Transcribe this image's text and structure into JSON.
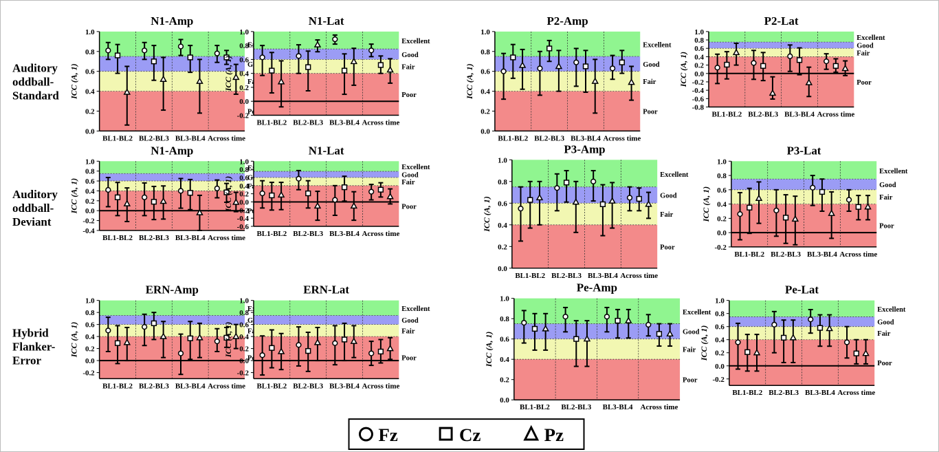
{
  "figure": {
    "row_labels": [
      [
        "Auditory",
        "oddball-",
        "Standard"
      ],
      [
        "Auditory",
        "oddball-",
        "Deviant"
      ],
      [
        "Hybrid",
        "Flanker-",
        "Error"
      ]
    ],
    "legend": [
      {
        "marker": "circle",
        "label": "Fz"
      },
      {
        "marker": "square",
        "label": "Cz"
      },
      {
        "marker": "triangle",
        "label": "Pz"
      }
    ]
  },
  "colors": {
    "excellent": "#90f590",
    "good": "#9b9cf5",
    "fair": "#f2f7b2",
    "poor": "#f38a8a"
  },
  "chart_data": [
    {
      "type": "scatter",
      "title": "N1-Amp",
      "ylabel": "ICC (A, 1)",
      "ylim": [
        0,
        1
      ],
      "yticks": [
        "0.0",
        "0.2",
        "0.4",
        "0.6",
        "0.8",
        "1.0"
      ],
      "categories": [
        "BL1-BL2",
        "BL2-BL3",
        "BL3-BL4",
        "Across time"
      ],
      "bands": [
        "Excellent",
        "Good",
        "Fair",
        "Poor"
      ],
      "series": [
        {
          "name": "Fz",
          "values": [
            0.81,
            0.81,
            0.85,
            0.78
          ],
          "ci_low": [
            0.72,
            0.72,
            0.76,
            0.69
          ],
          "ci_high": [
            0.89,
            0.89,
            0.92,
            0.86
          ]
        },
        {
          "name": "Cz",
          "values": [
            0.76,
            0.7,
            0.74,
            0.74
          ],
          "ci_low": [
            0.58,
            0.51,
            0.59,
            0.67
          ],
          "ci_high": [
            0.87,
            0.86,
            0.86,
            0.81
          ]
        },
        {
          "name": "Pz",
          "values": [
            0.39,
            0.52,
            0.5,
            0.54
          ],
          "ci_low": [
            0.06,
            0.21,
            0.18,
            0.37
          ],
          "ci_high": [
            0.65,
            0.74,
            0.72,
            0.67
          ]
        }
      ]
    },
    {
      "type": "scatter",
      "title": "N1-Lat",
      "ylabel": "ICC (A, 1)",
      "ylim": [
        -0.2,
        1
      ],
      "yticks": [
        "-0.2",
        "0.0",
        "0.2",
        "0.4",
        "0.6",
        "0.8",
        "1.0"
      ],
      "categories": [
        "BL1-BL2",
        "BL2-BL3",
        "BL3-BL4",
        "Across time"
      ],
      "bands": [
        "Excellent",
        "Good",
        "Fair",
        "Poor"
      ],
      "series": [
        {
          "name": "Fz",
          "values": [
            0.63,
            0.65,
            0.89,
            0.73
          ],
          "ci_low": [
            0.37,
            0.4,
            0.82,
            0.64
          ],
          "ci_high": [
            0.8,
            0.81,
            0.95,
            0.82
          ]
        },
        {
          "name": "Cz",
          "values": [
            0.44,
            0.49,
            0.44,
            0.52
          ],
          "ci_low": [
            0.12,
            0.15,
            0.1,
            0.4
          ],
          "ci_high": [
            0.7,
            0.72,
            0.68,
            0.65
          ]
        },
        {
          "name": "Pz",
          "values": [
            0.28,
            0.81,
            0.57,
            0.45
          ],
          "ci_low": [
            -0.08,
            0.71,
            0.23,
            0.26
          ],
          "ci_high": [
            0.58,
            0.88,
            0.76,
            0.61
          ]
        }
      ]
    },
    {
      "type": "scatter",
      "title": "P2-Amp",
      "ylabel": "ICC (A, 1)",
      "ylim": [
        0,
        1
      ],
      "yticks": [
        "0.0",
        "0.2",
        "0.4",
        "0.6",
        "0.8",
        "1.0"
      ],
      "categories": [
        "BL1-BL2",
        "BL2-BL3",
        "BL3-BL4",
        "Across time"
      ],
      "bands": [
        "Excellent",
        "Good",
        "Fair",
        "Poor"
      ],
      "series": [
        {
          "name": "Fz",
          "values": [
            0.6,
            0.63,
            0.69,
            0.63
          ],
          "ci_low": [
            0.32,
            0.36,
            0.45,
            0.52
          ],
          "ci_high": [
            0.78,
            0.8,
            0.83,
            0.76
          ]
        },
        {
          "name": "Cz",
          "values": [
            0.74,
            0.83,
            0.65,
            0.69
          ],
          "ci_low": [
            0.53,
            0.7,
            0.39,
            0.58
          ],
          "ci_high": [
            0.87,
            0.91,
            0.81,
            0.81
          ]
        },
        {
          "name": "Pz",
          "values": [
            0.66,
            0.65,
            0.5,
            0.49
          ],
          "ci_low": [
            0.42,
            0.4,
            0.18,
            0.31
          ],
          "ci_high": [
            0.82,
            0.81,
            0.72,
            0.65
          ]
        }
      ]
    },
    {
      "type": "scatter",
      "title": "P2-Lat",
      "ylabel": "ICC (A, 1)",
      "ylim": [
        -0.8,
        1
      ],
      "yticks": [
        "-0.8",
        "-0.6",
        "-0.4",
        "-0.2",
        "0.0",
        "0.2",
        "0.4",
        "0.6",
        "0.8",
        "1.0"
      ],
      "categories": [
        "BL1-BL2",
        "BL2-BL3",
        "BL3-BL4",
        "Across time"
      ],
      "bands": [
        "Excellent",
        "Good",
        "Fair",
        "Poor"
      ],
      "series": [
        {
          "name": "Fz",
          "values": [
            0.14,
            0.25,
            0.41,
            0.29
          ],
          "ci_low": [
            -0.24,
            -0.14,
            0.05,
            0.1
          ],
          "ci_high": [
            0.46,
            0.55,
            0.68,
            0.47
          ]
        },
        {
          "name": "Cz",
          "values": [
            0.21,
            0.18,
            0.32,
            0.18
          ],
          "ci_low": [
            -0.13,
            -0.17,
            -0.03,
            0.03
          ],
          "ci_high": [
            0.52,
            0.5,
            0.61,
            0.35
          ]
        },
        {
          "name": "Pz",
          "values": [
            0.5,
            -0.47,
            -0.22,
            0.12
          ],
          "ci_low": [
            0.2,
            -0.61,
            -0.55,
            -0.05
          ],
          "ci_high": [
            0.72,
            -0.08,
            0.15,
            0.3
          ]
        }
      ]
    },
    {
      "type": "scatter",
      "title": "N1-Amp",
      "ylabel": "ICC (A, 1)",
      "ylim": [
        -0.4,
        1
      ],
      "yticks": [
        "-0.4",
        "-0.2",
        "0.0",
        "0.2",
        "0.4",
        "0.6",
        "0.8",
        "1.0"
      ],
      "categories": [
        "BL1-BL2",
        "BL2-BL3",
        "BL3-BL4",
        "Across time"
      ],
      "bands": [
        "Excellent",
        "Good",
        "Fair",
        "Poor"
      ],
      "series": [
        {
          "name": "Fz",
          "values": [
            0.42,
            0.27,
            0.4,
            0.45
          ],
          "ci_low": [
            0.08,
            -0.1,
            0.05,
            0.26
          ],
          "ci_high": [
            0.67,
            0.56,
            0.65,
            0.62
          ]
        },
        {
          "name": "Cz",
          "values": [
            0.27,
            0.18,
            0.36,
            0.37
          ],
          "ci_low": [
            -0.1,
            -0.18,
            0.02,
            0.17
          ],
          "ci_high": [
            0.57,
            0.49,
            0.63,
            0.55
          ]
        },
        {
          "name": "Pz",
          "values": [
            0.14,
            0.19,
            -0.04,
            0.17
          ],
          "ci_low": [
            -0.22,
            -0.17,
            -0.4,
            -0.02
          ],
          "ci_high": [
            0.46,
            0.5,
            0.31,
            0.37
          ]
        }
      ]
    },
    {
      "type": "scatter",
      "title": "N1-Lat",
      "ylabel": "ICC (A, 1)",
      "ylim": [
        -0.6,
        1
      ],
      "yticks": [
        "-0.6",
        "-0.4",
        "-0.2",
        "0.0",
        "0.2",
        "0.4",
        "0.6",
        "0.8",
        "1.0"
      ],
      "categories": [
        "BL1-BL2",
        "BL2-BL3",
        "BL3-BL4",
        "Across time"
      ],
      "bands": [
        "Excellent",
        "Good",
        "Fair",
        "Poor"
      ],
      "series": [
        {
          "name": "Fz",
          "values": [
            0.21,
            0.57,
            0.05,
            0.25
          ],
          "ci_low": [
            -0.15,
            0.3,
            -0.33,
            0.05
          ],
          "ci_high": [
            0.52,
            0.77,
            0.4,
            0.43
          ]
        },
        {
          "name": "Cz",
          "values": [
            0.16,
            0.21,
            0.36,
            0.3
          ],
          "ci_low": [
            -0.2,
            -0.15,
            0.02,
            0.12
          ],
          "ci_high": [
            0.48,
            0.52,
            0.63,
            0.47
          ]
        },
        {
          "name": "Pz",
          "values": [
            0.17,
            -0.1,
            -0.1,
            0.13
          ],
          "ci_low": [
            -0.19,
            -0.45,
            -0.45,
            -0.05
          ],
          "ci_high": [
            0.48,
            0.26,
            0.25,
            0.32
          ]
        }
      ]
    },
    {
      "type": "scatter",
      "title": "P3-Amp",
      "ylabel": "ICC (A, 1)",
      "ylim": [
        0,
        1
      ],
      "yticks": [
        "0.0",
        "0.2",
        "0.4",
        "0.6",
        "0.8",
        "1.0"
      ],
      "categories": [
        "BL1-BL2",
        "BL2-BL3",
        "BL3-BL4",
        "Across time"
      ],
      "bands": [
        "Excellent",
        "Good",
        "Fair",
        "Poor"
      ],
      "series": [
        {
          "name": "Fz",
          "values": [
            0.55,
            0.74,
            0.8,
            0.65
          ],
          "ci_low": [
            0.25,
            0.53,
            0.62,
            0.53
          ],
          "ci_high": [
            0.75,
            0.87,
            0.9,
            0.75
          ]
        },
        {
          "name": "Cz",
          "values": [
            0.63,
            0.79,
            0.59,
            0.64
          ],
          "ci_low": [
            0.37,
            0.61,
            0.3,
            0.53
          ],
          "ci_high": [
            0.8,
            0.9,
            0.77,
            0.74
          ]
        },
        {
          "name": "Pz",
          "values": [
            0.65,
            0.61,
            0.62,
            0.59
          ],
          "ci_low": [
            0.4,
            0.33,
            0.37,
            0.46
          ],
          "ci_high": [
            0.8,
            0.8,
            0.79,
            0.7
          ]
        }
      ]
    },
    {
      "type": "scatter",
      "title": "P3-Lat",
      "ylabel": "ICC (A, 1)",
      "ylim": [
        -0.2,
        1
      ],
      "yticks": [
        "-0.2",
        "0.0",
        "0.2",
        "0.4",
        "0.6",
        "0.8",
        "1.0"
      ],
      "categories": [
        "BL1-BL2",
        "BL2-BL3",
        "BL3-BL4",
        "Across time"
      ],
      "bands": [
        "Excellent",
        "Good",
        "Fair",
        "Poor"
      ],
      "series": [
        {
          "name": "Fz",
          "values": [
            0.26,
            0.31,
            0.63,
            0.46
          ],
          "ci_low": [
            -0.1,
            -0.05,
            0.38,
            0.3
          ],
          "ci_high": [
            0.56,
            0.6,
            0.8,
            0.6
          ]
        },
        {
          "name": "Cz",
          "values": [
            0.35,
            0.21,
            0.57,
            0.36
          ],
          "ci_low": [
            -0.01,
            -0.15,
            0.3,
            0.18
          ],
          "ci_high": [
            0.62,
            0.53,
            0.75,
            0.52
          ]
        },
        {
          "name": "Pz",
          "values": [
            0.48,
            0.19,
            0.27,
            0.36
          ],
          "ci_low": [
            0.13,
            -0.17,
            -0.08,
            0.18
          ],
          "ci_high": [
            0.71,
            0.51,
            0.57,
            0.52
          ]
        }
      ]
    },
    {
      "type": "scatter",
      "title": "ERN-Amp",
      "ylabel": "ICC (A, 1)",
      "ylim": [
        -0.3,
        1
      ],
      "yticks": [
        "-0.2",
        "0.0",
        "0.2",
        "0.4",
        "0.6",
        "0.8",
        "1.0"
      ],
      "categories": [
        "BL1-BL2",
        "BL2-BL3",
        "BL3-BL4",
        "Across time"
      ],
      "bands": [
        "Excellent",
        "Good",
        "Fair",
        "Poor"
      ],
      "series": [
        {
          "name": "Fz",
          "values": [
            0.5,
            0.56,
            0.12,
            0.32
          ],
          "ci_low": [
            0.15,
            0.25,
            -0.23,
            0.15
          ],
          "ci_high": [
            0.72,
            0.77,
            0.44,
            0.53
          ]
        },
        {
          "name": "Cz",
          "values": [
            0.29,
            0.62,
            0.37,
            0.38
          ],
          "ci_low": [
            -0.05,
            0.35,
            0.02,
            0.22
          ],
          "ci_high": [
            0.58,
            0.8,
            0.65,
            0.55
          ]
        },
        {
          "name": "Pz",
          "values": [
            0.3,
            0.4,
            0.38,
            0.4
          ],
          "ci_low": [
            0.0,
            0.05,
            0.05,
            0.2
          ],
          "ci_high": [
            0.55,
            0.65,
            0.62,
            0.6
          ]
        }
      ]
    },
    {
      "type": "scatter",
      "title": "ERN-Lat",
      "ylabel": "ICC (A, 1)",
      "ylim": [
        -0.3,
        1
      ],
      "yticks": [
        "-0.2",
        "0.0",
        "0.2",
        "0.4",
        "0.6",
        "0.8",
        "1.0"
      ],
      "categories": [
        "BL1-BL2",
        "BL2-BL3",
        "BL3-BL4",
        "Across time"
      ],
      "bands": [
        "Excellent",
        "Good",
        "Fair",
        "Poor"
      ],
      "series": [
        {
          "name": "Fz",
          "values": [
            0.09,
            0.26,
            0.29,
            0.12
          ],
          "ci_low": [
            -0.24,
            -0.09,
            -0.07,
            -0.08
          ],
          "ci_high": [
            0.41,
            0.56,
            0.58,
            0.32
          ]
        },
        {
          "name": "Cz",
          "values": [
            0.21,
            0.16,
            0.35,
            0.15
          ],
          "ci_low": [
            -0.12,
            -0.18,
            0.0,
            -0.04
          ],
          "ci_high": [
            0.51,
            0.47,
            0.62,
            0.35
          ]
        },
        {
          "name": "Pz",
          "values": [
            0.15,
            0.3,
            0.32,
            0.2
          ],
          "ci_low": [
            -0.15,
            0.0,
            0.05,
            0.02
          ],
          "ci_high": [
            0.45,
            0.55,
            0.58,
            0.38
          ]
        }
      ]
    },
    {
      "type": "scatter",
      "title": "Pe-Amp",
      "ylabel": "ICC (A, 1)",
      "ylim": [
        0,
        1
      ],
      "yticks": [
        "0.0",
        "0.2",
        "0.4",
        "0.6",
        "0.8",
        "1.0"
      ],
      "categories": [
        "BL1-BL2",
        "BL2-BL3",
        "BL3-BL4",
        "Across time"
      ],
      "bands": [
        "Excellent",
        "Good",
        "Fair",
        "Poor"
      ],
      "series": [
        {
          "name": "Fz",
          "values": [
            0.76,
            0.82,
            0.82,
            0.74
          ],
          "ci_low": [
            0.56,
            0.67,
            0.67,
            0.63
          ],
          "ci_high": [
            0.88,
            0.91,
            0.91,
            0.84
          ]
        },
        {
          "name": "Cz",
          "values": [
            0.7,
            0.6,
            0.78,
            0.65
          ],
          "ci_low": [
            0.49,
            0.33,
            0.61,
            0.53
          ],
          "ci_high": [
            0.85,
            0.78,
            0.89,
            0.75
          ]
        },
        {
          "name": "Pz",
          "values": [
            0.7,
            0.6,
            0.78,
            0.65
          ],
          "ci_low": [
            0.49,
            0.33,
            0.61,
            0.53
          ],
          "ci_high": [
            0.85,
            0.78,
            0.89,
            0.75
          ]
        }
      ]
    },
    {
      "type": "scatter",
      "title": "Pe-Lat",
      "ylabel": "ICC (A, 1)",
      "ylim": [
        -0.3,
        1
      ],
      "yticks": [
        "-0.2",
        "0.0",
        "0.2",
        "0.4",
        "0.6",
        "0.8",
        "1.0"
      ],
      "categories": [
        "BL1-BL2",
        "BL2-BL3",
        "BL3-BL4",
        "Across time"
      ],
      "bands": [
        "Excellent",
        "Good",
        "Fair",
        "Poor"
      ],
      "series": [
        {
          "name": "Fz",
          "values": [
            0.36,
            0.63,
            0.71,
            0.36
          ],
          "ci_low": [
            -0.05,
            0.2,
            0.5,
            0.12
          ],
          "ci_high": [
            0.65,
            0.83,
            0.86,
            0.6
          ]
        },
        {
          "name": "Cz",
          "values": [
            0.21,
            0.43,
            0.58,
            0.19
          ],
          "ci_low": [
            -0.08,
            0.05,
            0.3,
            0.03
          ],
          "ci_high": [
            0.48,
            0.7,
            0.78,
            0.4
          ]
        },
        {
          "name": "Pz",
          "values": [
            0.2,
            0.43,
            0.57,
            0.19
          ],
          "ci_low": [
            -0.08,
            0.05,
            0.3,
            0.03
          ],
          "ci_high": [
            0.48,
            0.7,
            0.78,
            0.4
          ]
        }
      ]
    }
  ]
}
